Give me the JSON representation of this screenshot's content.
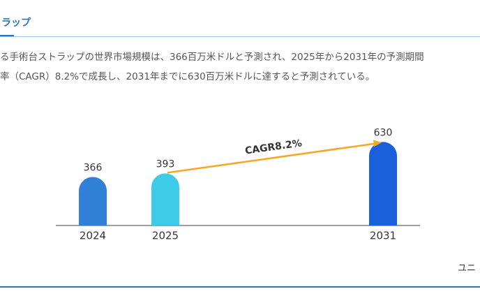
{
  "header": {
    "tab": "ラップ"
  },
  "description": [
    "る手術台ストラップの世界市場規模は、366百万米ドルと予測され、2025年から2031年の予測期間",
    "率（CAGR）8.2%で成長し、2031年までに630百万米ドルに達すると予測されている。"
  ],
  "footer": {
    "unit": "ユニ"
  },
  "chart_data": {
    "type": "bar",
    "categories": [
      "2024",
      "2025",
      "2031"
    ],
    "values": [
      366,
      393,
      630
    ],
    "colors": [
      "#2f80d6",
      "#3ecbe8",
      "#1a5fdc"
    ],
    "annotation": "CAGR8.2%",
    "annotation_color": "#f5a623"
  }
}
